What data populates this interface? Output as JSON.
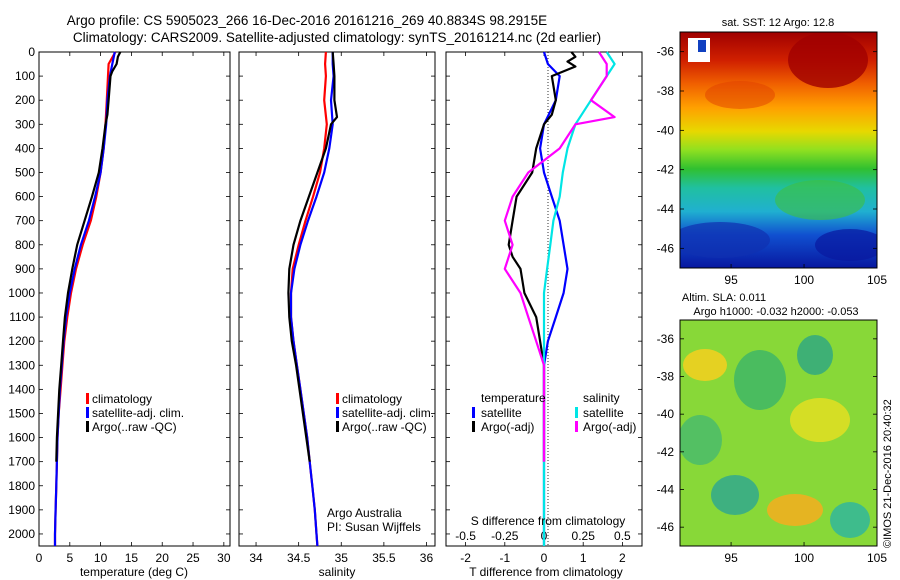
{
  "title_line1": "Argo profile: CS 5905023_266 16-Dec-2016 20161216_269 40.8834S 98.2915E",
  "title_line2": "Climatology: CARS2009. Satellite-adjusted climatology: synTS_20161214.nc (2d earlier)",
  "colors": {
    "climatology": "#ff0000",
    "satellite": "#0000ff",
    "argo": "#000000",
    "salinity_satellite": "#00e5e5",
    "salinity_argo": "#ff00ff"
  },
  "chart_data": [
    {
      "type": "line",
      "name": "temperature",
      "xlabel": "temperature (deg C)",
      "ylabel": "",
      "xlim": [
        0,
        31
      ],
      "ylim": [
        2050,
        0
      ],
      "xticks": [
        0,
        5,
        10,
        15,
        20,
        25,
        30
      ],
      "yticks": [
        0,
        100,
        200,
        300,
        400,
        500,
        600,
        700,
        800,
        900,
        1000,
        1100,
        1200,
        1300,
        1400,
        1500,
        1600,
        1700,
        1800,
        1900,
        2000
      ],
      "legend": [
        "climatology",
        "satellite-adj. clim.",
        "Argo(..raw -QC)"
      ],
      "series": [
        {
          "name": "climatology",
          "color": "#ff0000",
          "points": [
            [
              12.4,
              0
            ],
            [
              11.3,
              50
            ],
            [
              11.2,
              100
            ],
            [
              11.0,
              200
            ],
            [
              10.8,
              300
            ],
            [
              10.5,
              400
            ],
            [
              10.0,
              500
            ],
            [
              9.3,
              600
            ],
            [
              8.4,
              700
            ],
            [
              7.1,
              800
            ],
            [
              6.0,
              900
            ],
            [
              5.2,
              1000
            ],
            [
              4.6,
              1100
            ],
            [
              4.1,
              1200
            ],
            [
              3.8,
              1300
            ],
            [
              3.5,
              1400
            ],
            [
              3.2,
              1500
            ],
            [
              3.0,
              1600
            ],
            [
              2.9,
              1700
            ],
            [
              2.8,
              1800
            ],
            [
              2.7,
              1900
            ],
            [
              2.6,
              2000
            ],
            [
              2.6,
              2050
            ]
          ]
        },
        {
          "name": "satellite-adj. clim.",
          "color": "#0000ff",
          "points": [
            [
              12.3,
              0
            ],
            [
              11.9,
              50
            ],
            [
              11.5,
              100
            ],
            [
              11.1,
              200
            ],
            [
              10.9,
              300
            ],
            [
              10.5,
              400
            ],
            [
              10.0,
              500
            ],
            [
              9.1,
              600
            ],
            [
              8.1,
              700
            ],
            [
              6.8,
              800
            ],
            [
              5.8,
              900
            ],
            [
              5.0,
              1000
            ],
            [
              4.4,
              1100
            ],
            [
              4.0,
              1200
            ],
            [
              3.7,
              1300
            ],
            [
              3.4,
              1400
            ],
            [
              3.2,
              1500
            ],
            [
              3.0,
              1600
            ],
            [
              2.9,
              1700
            ],
            [
              2.8,
              1800
            ],
            [
              2.7,
              1900
            ],
            [
              2.6,
              2000
            ],
            [
              2.6,
              2050
            ]
          ]
        },
        {
          "name": "Argo(..raw -QC)",
          "color": "#000000",
          "points": [
            [
              13.2,
              0
            ],
            [
              12.8,
              20
            ],
            [
              12.6,
              50
            ],
            [
              11.9,
              80
            ],
            [
              11.6,
              100
            ],
            [
              11.3,
              200
            ],
            [
              11.1,
              260
            ],
            [
              10.8,
              300
            ],
            [
              10.3,
              400
            ],
            [
              9.7,
              500
            ],
            [
              8.6,
              600
            ],
            [
              7.4,
              700
            ],
            [
              6.2,
              800
            ],
            [
              5.4,
              900
            ],
            [
              4.7,
              1000
            ],
            [
              4.2,
              1100
            ],
            [
              3.9,
              1200
            ],
            [
              3.6,
              1300
            ],
            [
              3.3,
              1400
            ],
            [
              3.1,
              1500
            ],
            [
              2.9,
              1600
            ],
            [
              2.8,
              1700
            ]
          ]
        }
      ]
    },
    {
      "type": "line",
      "name": "salinity",
      "xlabel": "salinity",
      "ylabel": "",
      "xlim": [
        33.8,
        36.1
      ],
      "ylim": [
        2050,
        0
      ],
      "xticks": [
        34,
        34.5,
        35,
        35.5,
        36
      ],
      "legend": [
        "climatology",
        "satellite-adj. clim.",
        "Argo(..raw -QC)"
      ],
      "annotation_line1": "Argo Australia",
      "annotation_line2": "PI: Susan Wijffels",
      "series": [
        {
          "name": "climatology",
          "color": "#ff0000",
          "points": [
            [
              34.82,
              0
            ],
            [
              34.81,
              50
            ],
            [
              34.82,
              100
            ],
            [
              34.8,
              200
            ],
            [
              34.83,
              300
            ],
            [
              34.8,
              400
            ],
            [
              34.75,
              500
            ],
            [
              34.67,
              600
            ],
            [
              34.58,
              700
            ],
            [
              34.5,
              800
            ],
            [
              34.43,
              900
            ],
            [
              34.41,
              1000
            ],
            [
              34.41,
              1100
            ],
            [
              34.44,
              1200
            ],
            [
              34.48,
              1300
            ],
            [
              34.52,
              1400
            ],
            [
              34.56,
              1500
            ],
            [
              34.6,
              1600
            ],
            [
              34.63,
              1700
            ],
            [
              34.66,
              1800
            ],
            [
              34.69,
              1900
            ],
            [
              34.71,
              2000
            ],
            [
              34.72,
              2050
            ]
          ]
        },
        {
          "name": "satellite-adj. clim.",
          "color": "#0000ff",
          "points": [
            [
              34.9,
              0
            ],
            [
              34.9,
              50
            ],
            [
              34.91,
              100
            ],
            [
              34.88,
              200
            ],
            [
              34.9,
              300
            ],
            [
              34.86,
              400
            ],
            [
              34.8,
              500
            ],
            [
              34.71,
              600
            ],
            [
              34.61,
              700
            ],
            [
              34.52,
              800
            ],
            [
              34.45,
              900
            ],
            [
              34.41,
              1000
            ],
            [
              34.41,
              1100
            ],
            [
              34.44,
              1200
            ],
            [
              34.48,
              1300
            ],
            [
              34.52,
              1400
            ],
            [
              34.56,
              1500
            ],
            [
              34.6,
              1600
            ],
            [
              34.63,
              1700
            ],
            [
              34.66,
              1800
            ],
            [
              34.69,
              1900
            ],
            [
              34.71,
              2000
            ],
            [
              34.72,
              2050
            ]
          ]
        },
        {
          "name": "Argo(..raw -QC)",
          "color": "#000000",
          "points": [
            [
              34.9,
              0
            ],
            [
              34.91,
              50
            ],
            [
              34.92,
              100
            ],
            [
              34.92,
              200
            ],
            [
              34.95,
              270
            ],
            [
              34.88,
              300
            ],
            [
              34.82,
              400
            ],
            [
              34.72,
              500
            ],
            [
              34.62,
              600
            ],
            [
              34.52,
              700
            ],
            [
              34.44,
              800
            ],
            [
              34.39,
              900
            ],
            [
              34.38,
              1000
            ],
            [
              34.39,
              1100
            ],
            [
              34.42,
              1200
            ],
            [
              34.47,
              1300
            ],
            [
              34.51,
              1400
            ],
            [
              34.55,
              1500
            ],
            [
              34.59,
              1600
            ],
            [
              34.63,
              1700
            ]
          ]
        }
      ]
    },
    {
      "type": "line",
      "name": "differences",
      "xlabel": "T difference from climatology",
      "top_label": "S difference from climatology",
      "xlim": [
        -2.5,
        2.5
      ],
      "ylim": [
        2050,
        0
      ],
      "xticks": [
        -2,
        -1,
        0,
        1,
        2
      ],
      "xtick_labels": [
        "-2",
        "-1",
        "0",
        "1",
        "2"
      ],
      "top_ticks": [
        -0.5,
        -0.25,
        0,
        0.25,
        0.5
      ],
      "top_tick_labels": [
        "-0.5",
        "-0.25",
        "0",
        "0.25",
        "0.5"
      ],
      "legend_temperature_title": "temperature",
      "legend_salinity_title": "salinity",
      "legend_temperature": [
        "satellite",
        "Argo(-adj)"
      ],
      "legend_salinity": [
        "satellite",
        "Argo(-adj)"
      ],
      "series": [
        {
          "name": "temperature satellite",
          "color": "#0000ff",
          "points": [
            [
              0.0,
              0
            ],
            [
              0.1,
              50
            ],
            [
              0.4,
              100
            ],
            [
              0.3,
              200
            ],
            [
              0.0,
              300
            ],
            [
              -0.1,
              400
            ],
            [
              0.0,
              500
            ],
            [
              0.2,
              600
            ],
            [
              0.4,
              700
            ],
            [
              0.5,
              800
            ],
            [
              0.6,
              900
            ],
            [
              0.5,
              1000
            ],
            [
              0.3,
              1100
            ],
            [
              0.1,
              1200
            ],
            [
              0.0,
              1300
            ],
            [
              0.0,
              1500
            ],
            [
              0.0,
              2050
            ]
          ]
        },
        {
          "name": "temperature Argo(-adj)",
          "color": "#000000",
          "points": [
            [
              0.7,
              0
            ],
            [
              0.8,
              20
            ],
            [
              0.6,
              40
            ],
            [
              0.8,
              60
            ],
            [
              0.2,
              100
            ],
            [
              0.3,
              200
            ],
            [
              0.2,
              260
            ],
            [
              0.0,
              300
            ],
            [
              -0.2,
              400
            ],
            [
              -0.3,
              500
            ],
            [
              -0.7,
              600
            ],
            [
              -0.8,
              700
            ],
            [
              -0.9,
              800
            ],
            [
              -0.8,
              850
            ],
            [
              -0.6,
              900
            ],
            [
              -0.5,
              1000
            ],
            [
              -0.2,
              1100
            ],
            [
              -0.1,
              1200
            ],
            [
              0.0,
              1300
            ],
            [
              0.0,
              1500
            ],
            [
              0.0,
              1700
            ]
          ]
        },
        {
          "name": "salinity satellite",
          "color": "#00e5e5",
          "points": [
            [
              0.4,
              0
            ],
            [
              0.45,
              50
            ],
            [
              0.4,
              100
            ],
            [
              0.3,
              200
            ],
            [
              0.2,
              300
            ],
            [
              0.15,
              400
            ],
            [
              0.12,
              500
            ],
            [
              0.1,
              600
            ],
            [
              0.06,
              700
            ],
            [
              0.04,
              800
            ],
            [
              0.02,
              900
            ],
            [
              0.0,
              1000
            ],
            [
              0.0,
              2050
            ]
          ]
        },
        {
          "name": "salinity Argo(-adj)",
          "color": "#ff00ff",
          "points": [
            [
              0.35,
              0
            ],
            [
              0.4,
              50
            ],
            [
              0.4,
              100
            ],
            [
              0.3,
              200
            ],
            [
              0.45,
              270
            ],
            [
              0.2,
              300
            ],
            [
              0.1,
              400
            ],
            [
              -0.1,
              500
            ],
            [
              -0.2,
              600
            ],
            [
              -0.25,
              700
            ],
            [
              -0.2,
              800
            ],
            [
              -0.25,
              900
            ],
            [
              -0.15,
              1000
            ],
            [
              -0.1,
              1100
            ],
            [
              -0.05,
              1200
            ],
            [
              0.0,
              1300
            ],
            [
              0.0,
              1700
            ]
          ]
        }
      ]
    },
    {
      "type": "heatmap",
      "name": "sst_map",
      "title": "sat. SST: 12 Argo: 12.8",
      "xticks": [
        95,
        100,
        105
      ],
      "yticks": [
        -36,
        -38,
        -40,
        -42,
        -44,
        -46
      ],
      "xlim": [
        91.5,
        105
      ],
      "ylim": [
        -47,
        -35
      ]
    },
    {
      "type": "heatmap",
      "name": "sla_map",
      "title_line1": "Altim. SLA: 0.011",
      "title_line2": "Argo h1000: -0.032 h2000: -0.053",
      "xticks": [
        95,
        100,
        105
      ],
      "yticks": [
        -36,
        -38,
        -40,
        -42,
        -44,
        -46
      ],
      "xlim": [
        91.5,
        105
      ],
      "ylim": [
        -47,
        -35
      ]
    }
  ],
  "side_stamp": "©IMOS 21-Dec-2016 20:40:32"
}
